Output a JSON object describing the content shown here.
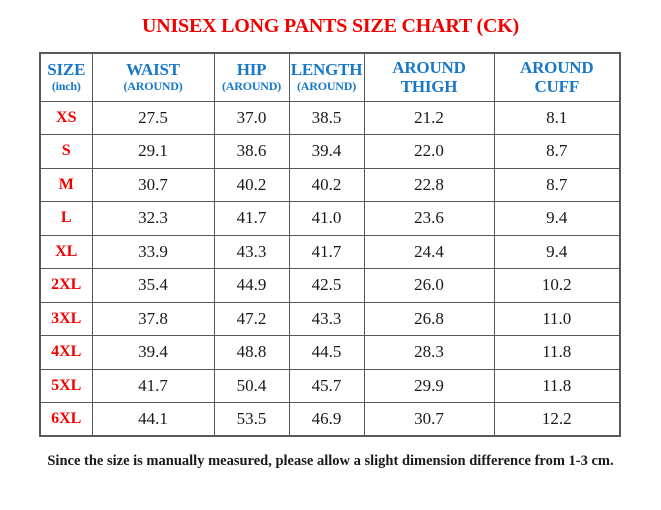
{
  "title": "UNISEX LONG PANTS SIZE CHART (CK)",
  "colors": {
    "title_red": "#f20000",
    "size_label_red": "#f20000",
    "header_blue": "#1878c8",
    "grid_gray": "#595959",
    "value_text": "#1a1a1a"
  },
  "table": {
    "columns": [
      {
        "line1": "SIZE",
        "line2": "(inch)",
        "line2_small": true
      },
      {
        "line1": "WAIST",
        "line2": "(AROUND)",
        "line2_small": true
      },
      {
        "line1": "HIP",
        "line2": "(AROUND)",
        "line2_small": true
      },
      {
        "line1": "LENGTH",
        "line2": "(AROUND)",
        "line2_small": true
      },
      {
        "line1": "AROUND",
        "line2": "THIGH",
        "line2_small": false
      },
      {
        "line1": "AROUND",
        "line2": "CUFF",
        "line2_small": false
      }
    ],
    "rows": [
      {
        "size": "XS",
        "values": [
          "27.5",
          "37.0",
          "38.5",
          "21.2",
          "8.1"
        ]
      },
      {
        "size": "S",
        "values": [
          "29.1",
          "38.6",
          "39.4",
          "22.0",
          "8.7"
        ]
      },
      {
        "size": "M",
        "values": [
          "30.7",
          "40.2",
          "40.2",
          "22.8",
          "8.7"
        ]
      },
      {
        "size": "L",
        "values": [
          "32.3",
          "41.7",
          "41.0",
          "23.6",
          "9.4"
        ]
      },
      {
        "size": "XL",
        "values": [
          "33.9",
          "43.3",
          "41.7",
          "24.4",
          "9.4"
        ]
      },
      {
        "size": "2XL",
        "values": [
          "35.4",
          "44.9",
          "42.5",
          "26.0",
          "10.2"
        ]
      },
      {
        "size": "3XL",
        "values": [
          "37.8",
          "47.2",
          "43.3",
          "26.8",
          "11.0"
        ]
      },
      {
        "size": "4XL",
        "values": [
          "39.4",
          "48.8",
          "44.5",
          "28.3",
          "11.8"
        ]
      },
      {
        "size": "5XL",
        "values": [
          "41.7",
          "50.4",
          "45.7",
          "29.9",
          "11.8"
        ]
      },
      {
        "size": "6XL",
        "values": [
          "44.1",
          "53.5",
          "46.9",
          "30.7",
          "12.2"
        ]
      }
    ]
  },
  "footer_note": "Since the size is manually measured, please allow a slight dimension difference from 1-3 cm."
}
